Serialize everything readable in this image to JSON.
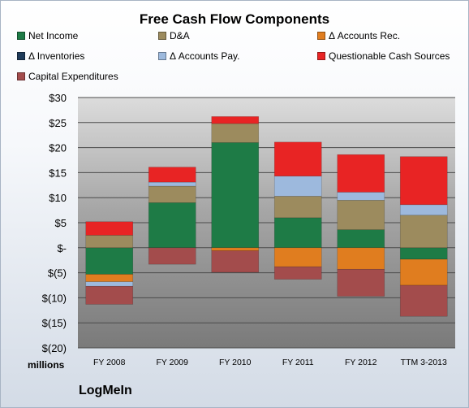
{
  "chart_data": {
    "type": "bar",
    "stacked": true,
    "title": "Free Cash Flow Components",
    "unit_label": "millions",
    "brand": "LogMeIn",
    "categories": [
      "FY 2008",
      "FY 2009",
      "FY 2010",
      "FY 2011",
      "FY 2012",
      "TTM 3-2013"
    ],
    "ylim": [
      -20,
      30
    ],
    "yticks": [
      30,
      25,
      20,
      15,
      10,
      5,
      0,
      -5,
      -10,
      -15,
      -20
    ],
    "ytick_labels": [
      "$30",
      "$25",
      "$20",
      "$15",
      "$10",
      "$5",
      "$-",
      "$(5)",
      "$(10)",
      "$(15)",
      "$(20)"
    ],
    "grid": true,
    "legend_position": "top",
    "series": [
      {
        "name": "Net Income",
        "color": "#1e7b46",
        "values": [
          -5.3,
          9.0,
          21.0,
          6.0,
          3.6,
          -2.3
        ]
      },
      {
        "name": "D&A",
        "color": "#9c8b5e",
        "values": [
          2.5,
          3.3,
          3.8,
          4.3,
          5.9,
          6.5
        ]
      },
      {
        "name": "Δ Accounts Rec.",
        "color": "#e07d1f",
        "values": [
          -1.5,
          0.0,
          -0.6,
          -3.8,
          -4.3,
          -5.2
        ]
      },
      {
        "name": "Δ Inventories",
        "color": "#1f3b5a",
        "values": [
          0,
          0,
          0,
          0,
          0,
          0
        ]
      },
      {
        "name": "Δ Accounts Pay.",
        "color": "#9db9dd",
        "values": [
          -0.9,
          0.8,
          0.0,
          4.0,
          1.6,
          2.1
        ]
      },
      {
        "name": "Questionable Cash Sources",
        "color": "#e82424",
        "values": [
          2.7,
          3.0,
          1.4,
          6.8,
          7.5,
          9.6
        ]
      },
      {
        "name": "Capital Expenditures",
        "color": "#a34c4c",
        "values": [
          -3.6,
          -3.3,
          -4.3,
          -2.5,
          -5.4,
          -6.2
        ]
      }
    ]
  }
}
